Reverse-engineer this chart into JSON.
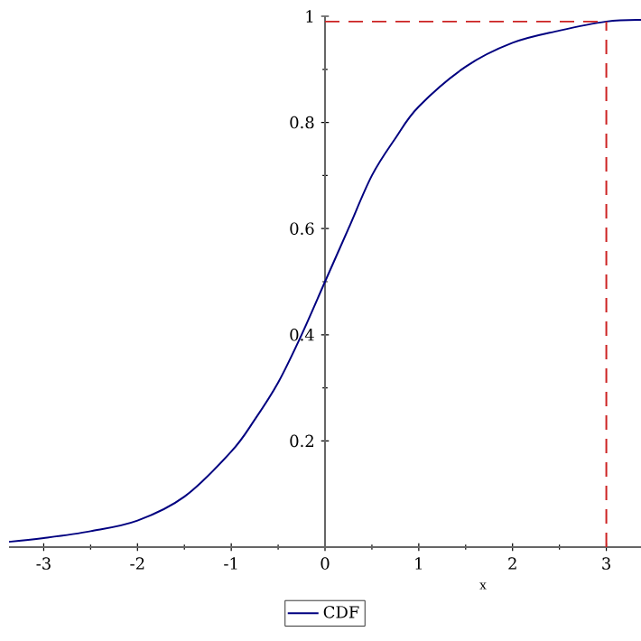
{
  "chart_data": {
    "type": "line",
    "xlabel": "x",
    "x": [
      -3.37,
      -3,
      -2.5,
      -2,
      -1.5,
      -1,
      -0.75,
      -0.5,
      -0.25,
      0,
      0.25,
      0.5,
      0.75,
      1,
      1.5,
      2,
      2.5,
      3,
      3.37
    ],
    "series": [
      {
        "name": "CDF",
        "color": "#000080",
        "values": [
          0.01,
          0.017,
          0.03,
          0.05,
          0.095,
          0.18,
          0.24,
          0.31,
          0.4,
          0.5,
          0.6,
          0.7,
          0.77,
          0.83,
          0.905,
          0.95,
          0.973,
          0.99,
          0.993
        ]
      }
    ],
    "xlim": [
      -3.37,
      3.37
    ],
    "ylim": [
      0,
      1
    ],
    "xticks": [
      -3,
      -2,
      -1,
      0,
      1,
      2,
      3
    ],
    "yticks": [
      0.2,
      0.4,
      0.6,
      0.8,
      1
    ],
    "ref_lines": [
      {
        "axis": "x",
        "value": 3,
        "color": "#cc2222",
        "line_style": "dashed"
      },
      {
        "axis": "y",
        "value": 0.99,
        "color": "#cc2222",
        "line_style": "dashed"
      }
    ],
    "legend": "bottom",
    "grid": false,
    "marker": "none",
    "line_style": "solid"
  }
}
